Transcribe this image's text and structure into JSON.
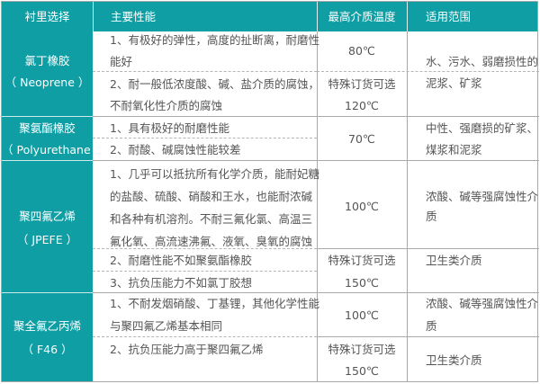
{
  "header": {
    "col1": "衬里选择",
    "col2": "主要性能",
    "col3": "最高介质温度",
    "col4": "适用范围"
  },
  "rows": [
    {
      "name": [
        "氯丁橡胶",
        "（ Neoprene ）"
      ],
      "props": [
        "1、有极好的弹性，高度的扯断离，耐磨性",
        "能好",
        "2、耐一般低浓度酸、碱、盐介质的腐蚀，",
        "不耐氧化性介质的腐蚀"
      ],
      "temp": [
        "80℃",
        "特殊订货可选",
        "120℃"
      ],
      "use": [
        "水、污水、弱磨损性的",
        "泥浆、矿浆"
      ]
    },
    {
      "name": [
        "聚氨酯橡胶",
        "（ Polyurethane ）"
      ],
      "props": [
        "1、具有极好的耐磨性能",
        "2、耐酸、碱腐蚀性能较差"
      ],
      "temp": [
        "70℃"
      ],
      "use": [
        "中性、强磨损的矿浆、",
        "煤浆和泥浆"
      ]
    },
    {
      "name": [
        "聚四氟乙烯",
        "（ JPEFE ）"
      ],
      "props": [
        "1、几乎可以抵抗所有化学介质，能耐妃糖",
        "的盐酸、硫酸、硝酸和王水，也能耐浓碱",
        "和各种有机溶剂。不耐三氟化氯、高温三",
        "氟化氧、高流速沸氟、液氧、臭氧的腐蚀",
        "2、耐磨性能不如聚氨酯橡胶",
        "3、抗负压能力不如氯丁胶想"
      ],
      "temp": [
        "100℃",
        "特殊订货可选",
        "150℃"
      ],
      "use": [
        "浓酸、碱等强腐蚀性介",
        "质",
        "卫生类介质"
      ]
    },
    {
      "name": [
        "聚全氟乙丙烯",
        "（ F46 ）"
      ],
      "props": [
        "1、不耐发烟硝酸、丁基锂，其他化学性能",
        "与聚四氟乙烯基本相同",
        "2、抗负压能力高于聚四氟乙烯"
      ],
      "temp": [
        "100℃",
        "特殊订货可选",
        "150℃"
      ],
      "use": [
        "浓酸、碱等强腐蚀性介",
        "质",
        "卫生类介质"
      ]
    }
  ],
  "colors": {
    "header_bg": "#0e9ea4",
    "border": "#a9a9a9",
    "text": "#555555"
  }
}
